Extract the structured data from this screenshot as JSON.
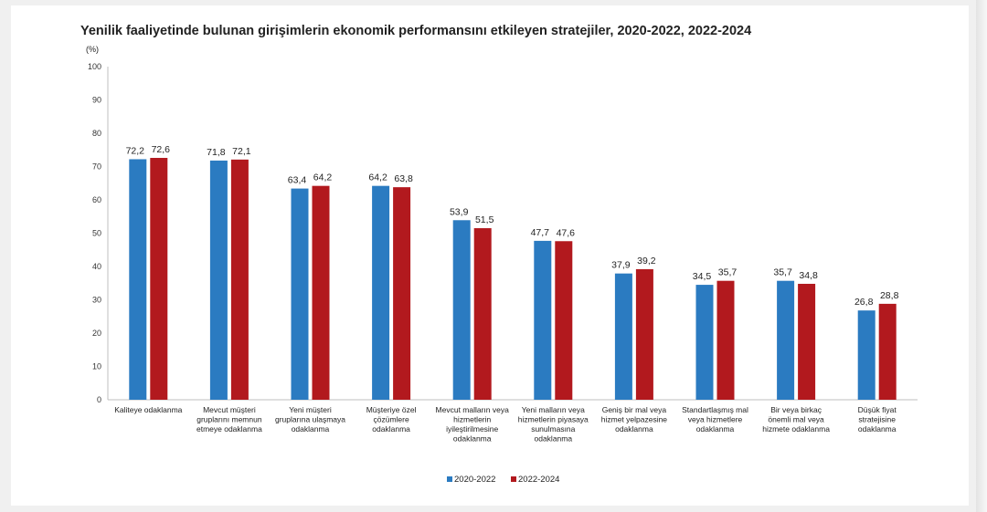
{
  "chart_data": {
    "type": "bar",
    "title": "Yenilik faaliyetinde bulunan girişimlerin ekonomik performansını etkileyen stratejiler, 2020-2022, 2022-2024",
    "ylabel": "(%)",
    "xlabel": "",
    "ylim": [
      0,
      100
    ],
    "yticks": [
      0,
      10,
      20,
      30,
      40,
      50,
      60,
      70,
      80,
      90,
      100
    ],
    "grid": false,
    "legend_position": "bottom",
    "categories": [
      [
        "Kaliteye odaklanma"
      ],
      [
        "Mevcut müşteri",
        "gruplarını memnun",
        "etmeye odaklanma"
      ],
      [
        "Yeni müşteri",
        "gruplarına ulaşmaya",
        "odaklanma"
      ],
      [
        "Müşteriye özel",
        "çözümlere",
        "odaklanma"
      ],
      [
        "Mevcut malların veya",
        "hizmetlerin",
        "iyileştirilmesine",
        "odaklanma"
      ],
      [
        "Yeni malların veya",
        "hizmetlerin piyasaya",
        "sunulmasına",
        "odaklanma"
      ],
      [
        "Geniş bir mal veya",
        "hizmet yelpazesine",
        "odaklanma"
      ],
      [
        "Standartlaşmış mal",
        "veya hizmetlere",
        "odaklanma"
      ],
      [
        "Bir veya birkaç",
        "önemli mal veya",
        "hizmete odaklanma"
      ],
      [
        "Düşük fiyat",
        "stratejisine",
        "odaklanma"
      ]
    ],
    "series": [
      {
        "name": "2020-2022",
        "color": "#2b7bc1",
        "values": [
          72.2,
          71.8,
          63.4,
          64.2,
          53.9,
          47.7,
          37.9,
          34.5,
          35.7,
          26.8
        ],
        "labels": [
          "72,2",
          "71,8",
          "63,4",
          "64,2",
          "53,9",
          "47,7",
          "37,9",
          "34,5",
          "35,7",
          "26,8"
        ]
      },
      {
        "name": "2022-2024",
        "color": "#b2191e",
        "values": [
          72.6,
          72.1,
          64.2,
          63.8,
          51.5,
          47.6,
          39.2,
          35.7,
          34.8,
          28.8
        ],
        "labels": [
          "72,6",
          "72,1",
          "64,2",
          "63,8",
          "51,5",
          "47,6",
          "39,2",
          "35,7",
          "34,8",
          "28,8"
        ]
      }
    ]
  }
}
